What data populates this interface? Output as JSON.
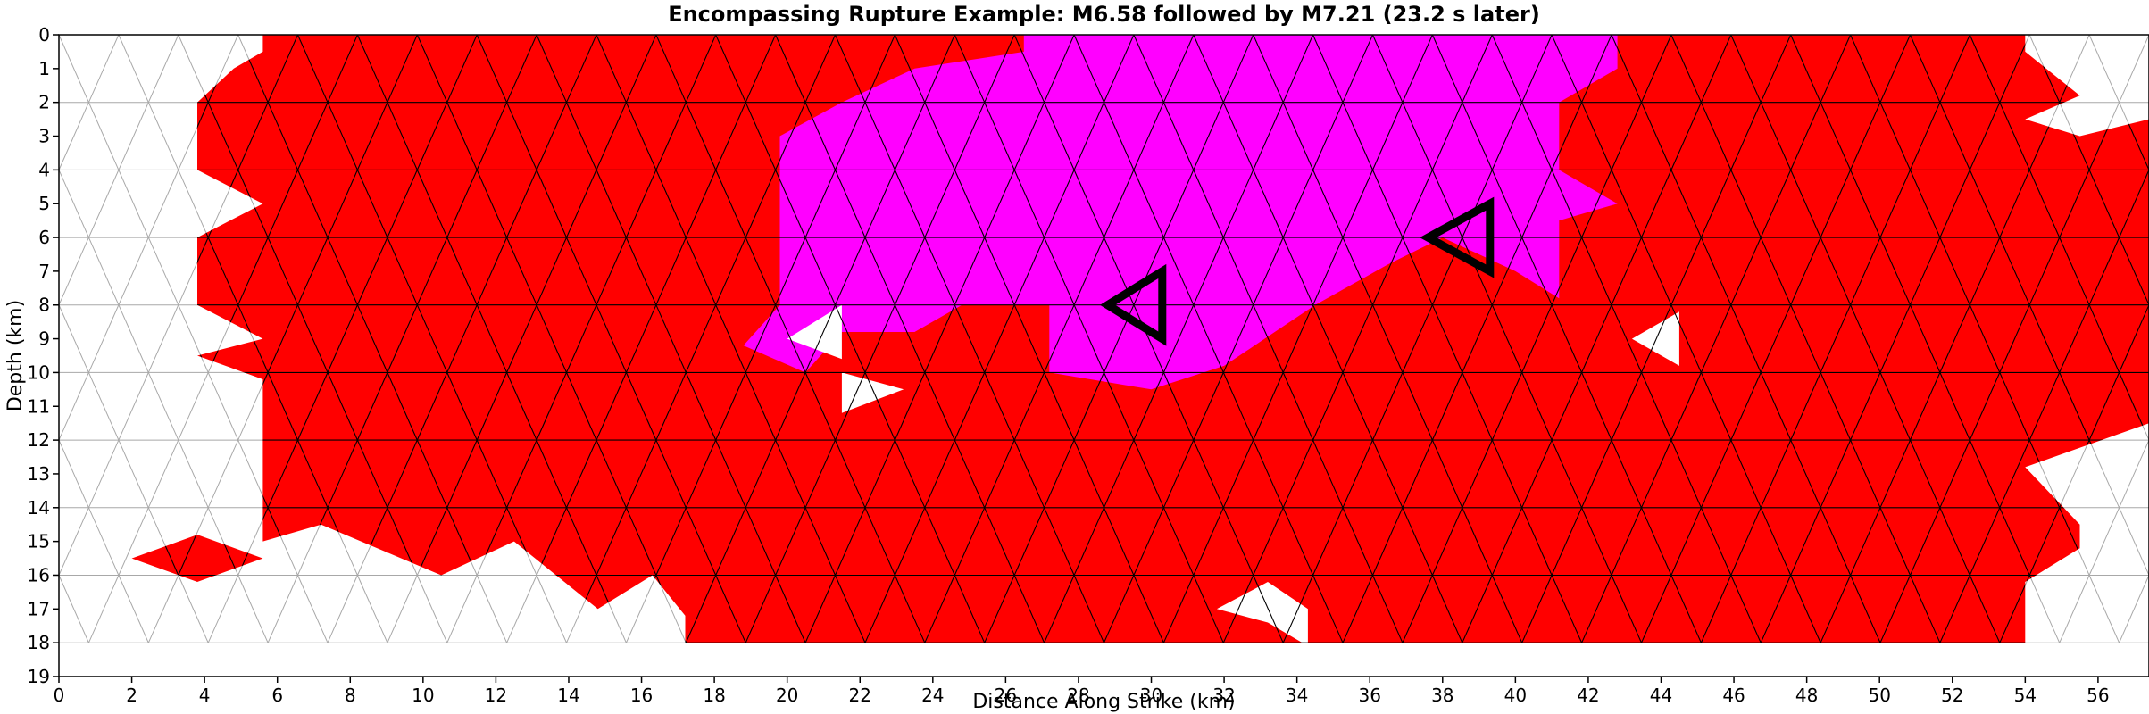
{
  "chart_data": {
    "type": "heatmap",
    "title": "Encompassing Rupture Example: M6.58 followed by M7.21 (23.2 s later)",
    "xlabel": "Distance Along Strike (km)",
    "ylabel": "Depth (km)",
    "xlim": [
      0,
      57.4
    ],
    "ylim": [
      19,
      0
    ],
    "y_inverted": true,
    "grid": true,
    "x_ticks": [
      0,
      2,
      4,
      6,
      8,
      10,
      12,
      14,
      16,
      18,
      20,
      22,
      24,
      26,
      28,
      30,
      32,
      34,
      36,
      38,
      40,
      42,
      44,
      46,
      48,
      50,
      52,
      54,
      56
    ],
    "y_ticks": [
      0,
      1,
      2,
      3,
      4,
      5,
      6,
      7,
      8,
      9,
      10,
      11,
      12,
      13,
      14,
      15,
      16,
      17,
      18,
      19
    ],
    "mesh": {
      "element": "triangle",
      "node_spacing_km": 1.64,
      "row_height_km": 2,
      "rows": 9,
      "columns": 35,
      "depth_range_km": [
        0,
        18
      ]
    },
    "colors": {
      "first_event_M6_58": "#ff00ff",
      "second_event_M7_21": "#ff0000",
      "not_ruptured": "#ffffff",
      "inactive_mesh_line": "#a8a8a8",
      "active_mesh_line": "#000000",
      "hypocenter_marker": "#000000"
    },
    "first_event_region": {
      "event": "M6.58",
      "polygon": [
        [
          26.5,
          0
        ],
        [
          26.5,
          0.5
        ],
        [
          23.5,
          1
        ],
        [
          21.5,
          2
        ],
        [
          19.8,
          3
        ],
        [
          19.8,
          8
        ],
        [
          18.8,
          9.2
        ],
        [
          20.5,
          10
        ],
        [
          21.5,
          8.8
        ],
        [
          23.5,
          8.8
        ],
        [
          24.8,
          8
        ],
        [
          27.2,
          8
        ],
        [
          27.2,
          10
        ],
        [
          30,
          10.5
        ],
        [
          32,
          9.8
        ],
        [
          34.5,
          8
        ],
        [
          36.5,
          6.8
        ],
        [
          38,
          6
        ],
        [
          40,
          7
        ],
        [
          41.2,
          7.8
        ],
        [
          41.2,
          5.5
        ],
        [
          42.8,
          5
        ],
        [
          41.2,
          4
        ],
        [
          41.2,
          2
        ],
        [
          42.8,
          1
        ],
        [
          42.8,
          0
        ]
      ]
    },
    "second_event_region": {
      "event": "M7.21",
      "polygon": [
        [
          5.6,
          0
        ],
        [
          5.6,
          0.5
        ],
        [
          4.8,
          1
        ],
        [
          3.8,
          2
        ],
        [
          3.8,
          4
        ],
        [
          5.6,
          5
        ],
        [
          3.8,
          6
        ],
        [
          3.8,
          8
        ],
        [
          5.6,
          9
        ],
        [
          3.8,
          9.5
        ],
        [
          5.6,
          10.2
        ],
        [
          5.6,
          15
        ],
        [
          7.2,
          14.5
        ],
        [
          10.5,
          16
        ],
        [
          12.5,
          15
        ],
        [
          14.8,
          17
        ],
        [
          16.3,
          16
        ],
        [
          17.2,
          17.2
        ],
        [
          17.2,
          18
        ],
        [
          54,
          18
        ],
        [
          54,
          16.2
        ],
        [
          55.5,
          15.2
        ],
        [
          55.5,
          14.5
        ],
        [
          54,
          12.8
        ],
        [
          57.4,
          11.5
        ],
        [
          57.4,
          2.5
        ],
        [
          55.5,
          3
        ],
        [
          54,
          2.5
        ],
        [
          55.5,
          1.8
        ],
        [
          54,
          0.5
        ],
        [
          54,
          0
        ]
      ]
    },
    "second_event_patches": [
      {
        "polygon": [
          [
            2,
            15.5
          ],
          [
            3.8,
            14.8
          ],
          [
            5.6,
            15.5
          ],
          [
            3.8,
            16.2
          ]
        ]
      }
    ],
    "holes": [
      {
        "polygon": [
          [
            20,
            9
          ],
          [
            21.5,
            8
          ],
          [
            21.5,
            9.6
          ]
        ]
      },
      {
        "polygon": [
          [
            21.5,
            10
          ],
          [
            23.2,
            10.5
          ],
          [
            21.5,
            11.2
          ]
        ]
      },
      {
        "polygon": [
          [
            31.8,
            17
          ],
          [
            33.2,
            16.2
          ],
          [
            34.3,
            17
          ],
          [
            34.3,
            18.1
          ],
          [
            33.2,
            17.4
          ]
        ]
      },
      {
        "polygon": [
          [
            43.2,
            9
          ],
          [
            44.5,
            8.2
          ],
          [
            44.5,
            9.8
          ]
        ]
      }
    ],
    "hypocenters": [
      {
        "event": "M6.58",
        "vertices": [
          [
            30.3,
            7
          ],
          [
            28.8,
            8
          ],
          [
            30.3,
            9
          ]
        ]
      },
      {
        "event": "M7.21",
        "vertices": [
          [
            39.3,
            5
          ],
          [
            37.6,
            6
          ],
          [
            39.3,
            7
          ]
        ]
      }
    ]
  }
}
